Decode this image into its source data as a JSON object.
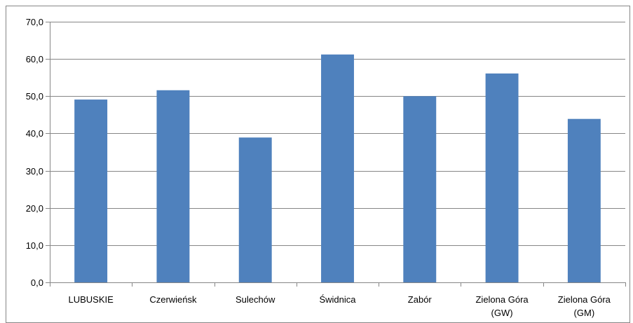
{
  "chart_data": {
    "type": "bar",
    "title": "",
    "xlabel": "",
    "ylabel": "",
    "categories": [
      [
        "LUBUSKIE"
      ],
      [
        "Czerwieńsk"
      ],
      [
        "Sulechów"
      ],
      [
        "Świdnica"
      ],
      [
        "Zabór"
      ],
      [
        "Zielona Góra",
        "(GW)"
      ],
      [
        "Zielona Góra",
        "(GM)"
      ]
    ],
    "values": [
      49.1,
      51.6,
      38.9,
      61.2,
      50.0,
      56.1,
      43.9
    ],
    "ylim": [
      0,
      70
    ],
    "yticks": [
      0,
      10,
      20,
      30,
      40,
      50,
      60,
      70
    ],
    "ytick_labels": [
      "0,0",
      "10,0",
      "20,0",
      "30,0",
      "40,0",
      "50,0",
      "60,0",
      "70,0"
    ],
    "grid": true,
    "legend": "none",
    "bar_color": "#4f81bd",
    "grid_color": "#868686",
    "axis_color": "#868686",
    "frame_color": "#868686"
  }
}
